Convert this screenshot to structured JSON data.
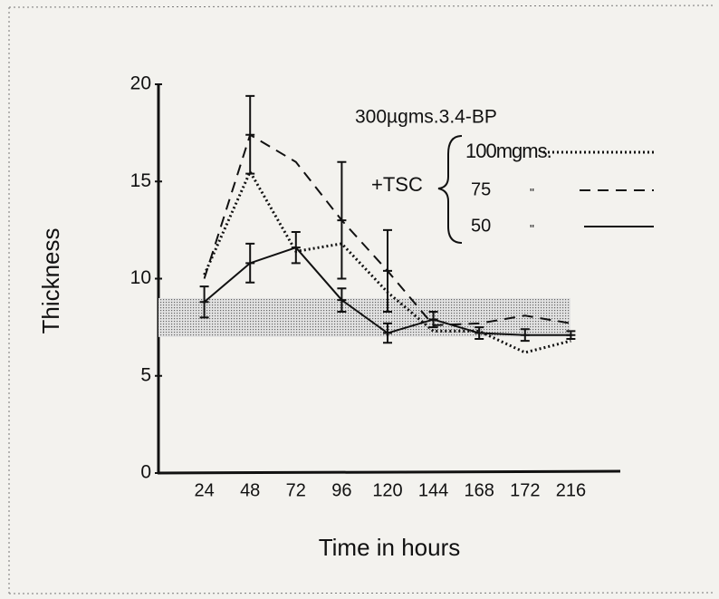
{
  "chart_data": {
    "type": "line",
    "ylabel": "Thickness",
    "xlabel": "Time in hours",
    "categories": [
      "24",
      "48",
      "72",
      "96",
      "120",
      "144",
      "168",
      "172",
      "216"
    ],
    "series": [
      {
        "name": "100mgms.",
        "color": "#111111",
        "style": "dotted",
        "values": [
          10.2,
          15.5,
          11.4,
          11.8,
          9.3,
          7.3,
          7.3,
          6.2,
          6.8
        ]
      },
      {
        "name": "75",
        "color": "#111111",
        "style": "dashed",
        "values": [
          10,
          17.4,
          16,
          13,
          10.4,
          7.6,
          7.7,
          8.1,
          7.7
        ],
        "errors": [
          null,
          2,
          null,
          3,
          2.1,
          null,
          null,
          null,
          null
        ]
      },
      {
        "name": "50",
        "color": "#111111",
        "style": "solid",
        "values": [
          8.8,
          10.8,
          11.6,
          8.9,
          7.2,
          7.9,
          7.2,
          7.1,
          7.1
        ],
        "errors": [
          0.8,
          1,
          0.8,
          0.6,
          0.5,
          0.4,
          0.3,
          0.3,
          0.2
        ]
      }
    ],
    "band": {
      "low": 7,
      "high": 9
    },
    "dose": "300µgms.3.4-BP",
    "treatment": "+TSC",
    "ditto": "\"",
    "ylim": [
      0,
      20
    ],
    "yticks": [
      0,
      5,
      10,
      15,
      20
    ]
  }
}
